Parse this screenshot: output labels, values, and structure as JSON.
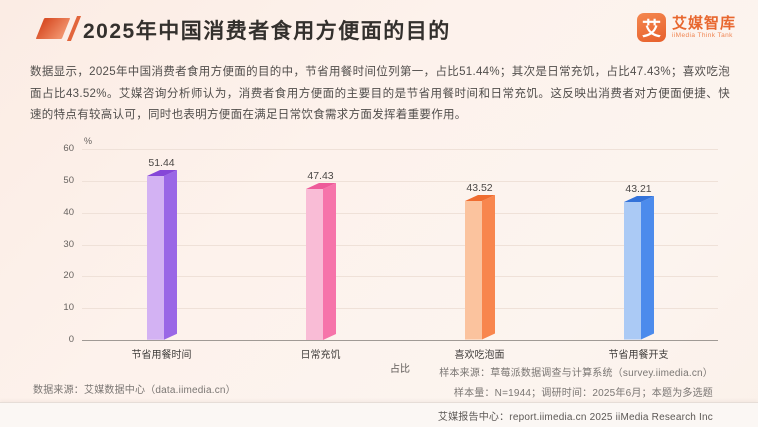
{
  "page": {
    "title": "2025年中国消费者食用方便面的目的",
    "logo": {
      "icon_text": "艾",
      "brand_cn": "艾媒智库",
      "brand_en": "iiMedia Think Tank"
    },
    "paragraph": "数据显示，2025年中国消费者食用方便面的目的中，节省用餐时间位列第一，占比51.44%；其次是日常充饥，占比47.43%；喜欢吃泡面占比43.52%。艾媒咨询分析师认为，消费者食用方便面的主要目的是节省用餐时间和日常充饥。这反映出消费者对方便面便捷、快速的特点有较高认可，同时也表明方便面在满足日常饮食需求方面发挥着重要作用。",
    "source_left": "数据来源：艾媒数据中心（data.iimedia.cn）",
    "sample_source": "样本来源：草莓派数据调查与计算系统（survey.iimedia.cn）",
    "sample_info": "样本量：N=1944；调研时间：2025年6月；本题为多选题",
    "footer": "艾媒报告中心：report.iimedia.cn   2025 iiMedia Research Inc"
  },
  "colors": {
    "accent_orange": "#e8672f",
    "page_background": "#fdf2ec",
    "axis_line": "#a09a95",
    "gridline": "#efe1d8"
  },
  "chart_data": {
    "type": "bar",
    "title": "",
    "categories": [
      "节省用餐时间",
      "日常充饥",
      "喜欢吃泡面",
      "节省用餐开支"
    ],
    "values": [
      51.44,
      47.43,
      43.52,
      43.21
    ],
    "unit": "%",
    "xlabel": "占比",
    "ylabel": "%",
    "ylim": [
      0,
      60
    ],
    "yticks": [
      0,
      10,
      20,
      30,
      40,
      50,
      60
    ],
    "grid": true,
    "legend": false,
    "bar_style": "3d-box",
    "bar_colors": [
      {
        "light": "#d3b2f3",
        "main": "#9a67e6",
        "dark": "#8547d8"
      },
      {
        "light": "#f9bcd6",
        "main": "#f674aa",
        "dark": "#ee5b9a"
      },
      {
        "light": "#fbc39e",
        "main": "#f8864e",
        "dark": "#ef6c30"
      },
      {
        "light": "#abcaf5",
        "main": "#4c8bec",
        "dark": "#3372d9"
      }
    ]
  }
}
